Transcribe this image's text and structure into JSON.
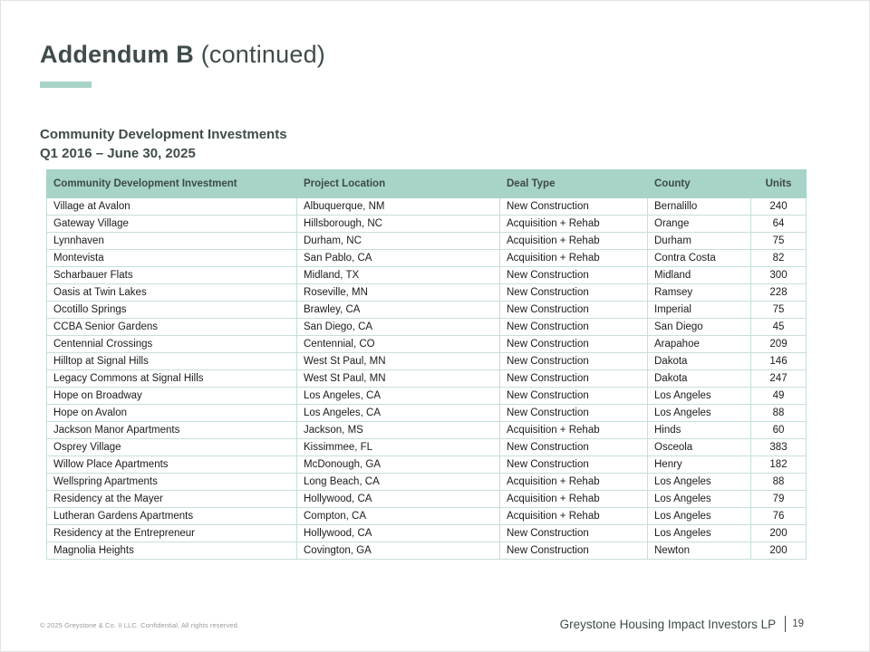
{
  "header": {
    "title_bold": "Addendum B",
    "title_regular": " (continued)",
    "subtitle_line1": "Community Development Investments",
    "subtitle_line2": "Q1 2016 – June 30, 2025"
  },
  "table": {
    "columns": [
      "Community Development Investment",
      "Project Location",
      "Deal Type",
      "County",
      "Units"
    ],
    "column_keys": [
      "investment",
      "project-location",
      "deal-type",
      "county",
      "units"
    ],
    "rows": [
      [
        "Village at Avalon",
        "Albuquerque, NM",
        "New Construction",
        "Bernalillo",
        "240"
      ],
      [
        "Gateway Village",
        "Hillsborough, NC",
        "Acquisition + Rehab",
        "Orange",
        "64"
      ],
      [
        "Lynnhaven",
        "Durham, NC",
        "Acquisition + Rehab",
        "Durham",
        "75"
      ],
      [
        "Montevista",
        "San Pablo, CA",
        "Acquisition + Rehab",
        "Contra Costa",
        "82"
      ],
      [
        "Scharbauer Flats",
        "Midland, TX",
        "New Construction",
        "Midland",
        "300"
      ],
      [
        "Oasis at Twin Lakes",
        "Roseville, MN",
        "New Construction",
        "Ramsey",
        "228"
      ],
      [
        "Ocotillo Springs",
        "Brawley, CA",
        "New Construction",
        "Imperial",
        "75"
      ],
      [
        "CCBA Senior Gardens",
        "San Diego, CA",
        "New Construction",
        "San Diego",
        "45"
      ],
      [
        "Centennial Crossings",
        "Centennial, CO",
        "New Construction",
        "Arapahoe",
        "209"
      ],
      [
        "Hilltop at Signal Hills",
        "West St Paul, MN",
        "New Construction",
        "Dakota",
        "146"
      ],
      [
        "Legacy Commons at Signal Hills",
        "West St Paul, MN",
        "New Construction",
        "Dakota",
        "247"
      ],
      [
        "Hope on Broadway",
        "Los Angeles, CA",
        "New Construction",
        "Los Angeles",
        "49"
      ],
      [
        "Hope on Avalon",
        "Los Angeles, CA",
        "New Construction",
        "Los Angeles",
        "88"
      ],
      [
        "Jackson Manor Apartments",
        "Jackson, MS",
        "Acquisition + Rehab",
        "Hinds",
        "60"
      ],
      [
        "Osprey Village",
        "Kissimmee, FL",
        "New Construction",
        "Osceola",
        "383"
      ],
      [
        "Willow Place Apartments",
        "McDonough, GA",
        "New Construction",
        "Henry",
        "182"
      ],
      [
        "Wellspring Apartments",
        "Long Beach, CA",
        "Acquisition + Rehab",
        "Los Angeles",
        "88"
      ],
      [
        "Residency at the Mayer",
        "Hollywood, CA",
        "Acquisition + Rehab",
        "Los Angeles",
        "79"
      ],
      [
        "Lutheran Gardens Apartments",
        "Compton, CA",
        "Acquisition + Rehab",
        "Los Angeles",
        "76"
      ],
      [
        "Residency at the Entrepreneur",
        "Hollywood, CA",
        "New Construction",
        "Los Angeles",
        "200"
      ],
      [
        "Magnolia Heights",
        "Covington, GA",
        "New Construction",
        "Newton",
        "200"
      ]
    ]
  },
  "footer": {
    "copyright": "© 2025 Greystone & Co. II LLC. Confidential. All rights reserved.",
    "company": "Greystone Housing Impact Investors LP",
    "page_number": "19"
  },
  "colors": {
    "accent_mint": "#a8d3c8",
    "title_slate": "#3f4c4b",
    "table_border": "#c7dfd8"
  }
}
